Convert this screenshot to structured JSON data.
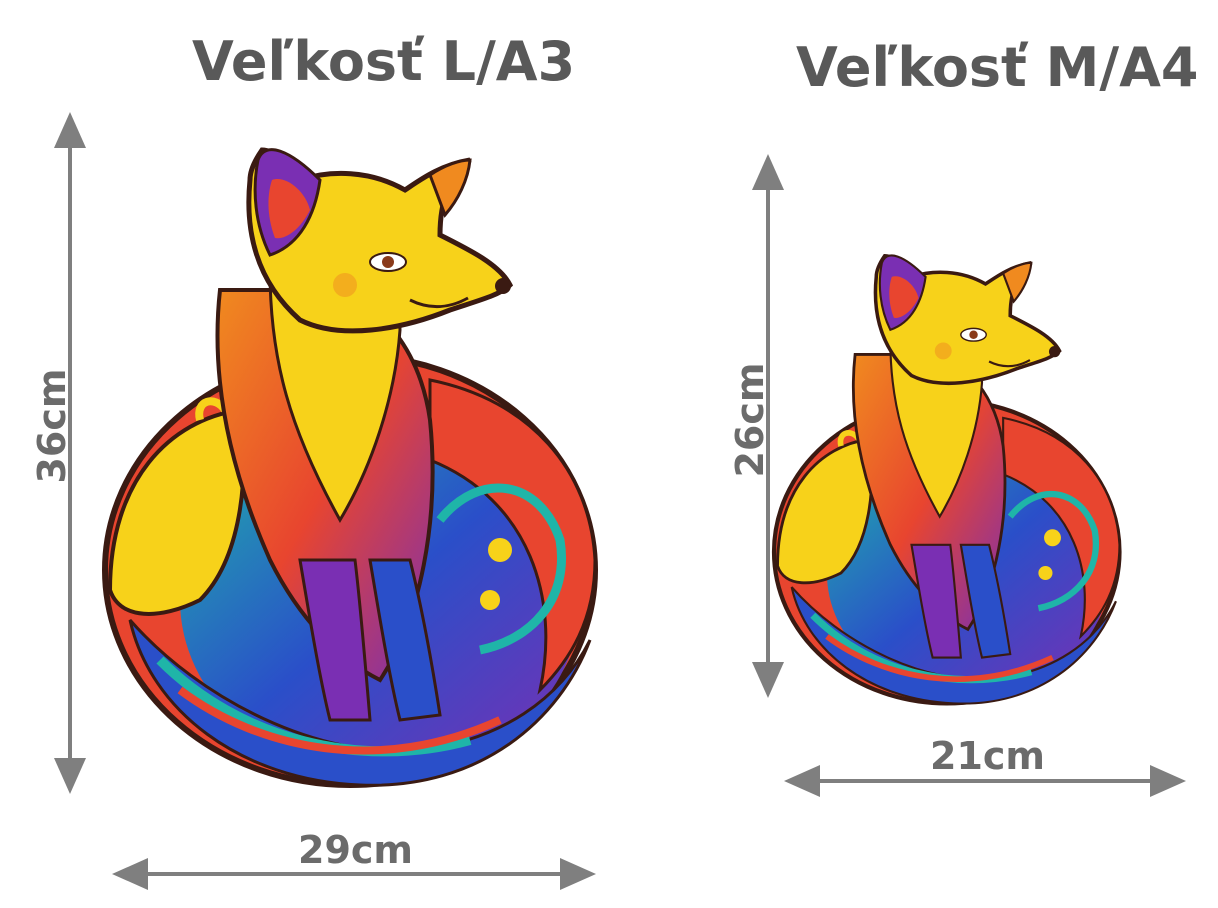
{
  "sizes": {
    "large": {
      "title": "Veľkosť L/A3",
      "height": "36cm",
      "width": "29cm"
    },
    "medium": {
      "title": "Veľkosť M/A4",
      "height": "26cm",
      "width": "21cm"
    }
  },
  "colors": {
    "text": "#595959",
    "arrow": "#7f7f7f",
    "fox_yellow": "#f7d21a",
    "fox_orange": "#f08a1f",
    "fox_red": "#e8452f",
    "fox_blue": "#2a4fc9",
    "fox_teal": "#1fb5a8",
    "fox_purple": "#7a2fb3",
    "outline": "#3a1a12"
  },
  "icons": {
    "large_puzzle": "fox-puzzle-illustration",
    "medium_puzzle": "fox-puzzle-illustration"
  }
}
